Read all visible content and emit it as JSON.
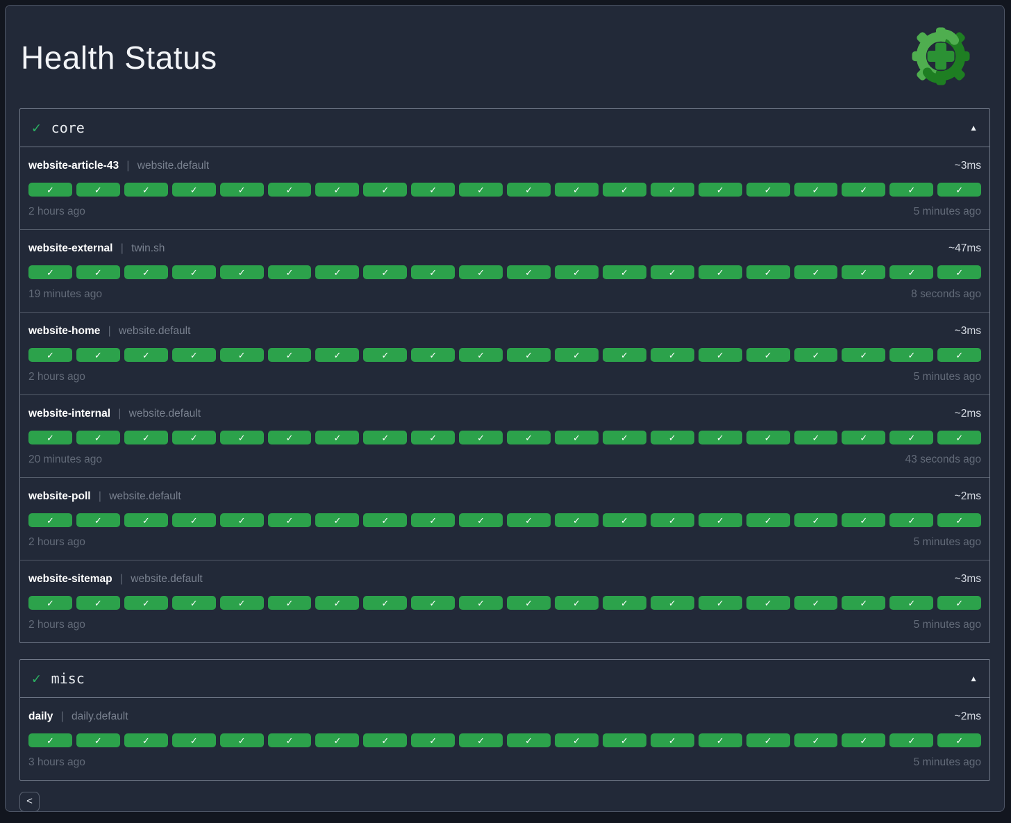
{
  "page": {
    "title": "Health Status"
  },
  "icons": {
    "check": "✓",
    "collapse": "▲",
    "back": "<",
    "logo": "health-gear-plus-logo"
  },
  "strings": {
    "divider": "|"
  },
  "colors": {
    "ok_pill": "#2ca24b",
    "section_check_green": "#2bb062",
    "logo_light_green": "#4fae4f",
    "logo_dark_green": "#1e7e22",
    "logo_plus_green": "#2b9134"
  },
  "sections": [
    {
      "label": "core",
      "status": "ok",
      "rows": [
        {
          "name": "website-article-43",
          "group": "website.default",
          "latency": "~3ms",
          "oldest": "2 hours ago",
          "newest": "5 minutes ago",
          "history": {
            "count": 20,
            "status": "ok"
          }
        },
        {
          "name": "website-external",
          "group": "twin.sh",
          "latency": "~47ms",
          "oldest": "19 minutes ago",
          "newest": "8 seconds ago",
          "history": {
            "count": 20,
            "status": "ok"
          }
        },
        {
          "name": "website-home",
          "group": "website.default",
          "latency": "~3ms",
          "oldest": "2 hours ago",
          "newest": "5 minutes ago",
          "history": {
            "count": 20,
            "status": "ok"
          }
        },
        {
          "name": "website-internal",
          "group": "website.default",
          "latency": "~2ms",
          "oldest": "20 minutes ago",
          "newest": "43 seconds ago",
          "history": {
            "count": 20,
            "status": "ok"
          }
        },
        {
          "name": "website-poll",
          "group": "website.default",
          "latency": "~2ms",
          "oldest": "2 hours ago",
          "newest": "5 minutes ago",
          "history": {
            "count": 20,
            "status": "ok"
          }
        },
        {
          "name": "website-sitemap",
          "group": "website.default",
          "latency": "~3ms",
          "oldest": "2 hours ago",
          "newest": "5 minutes ago",
          "history": {
            "count": 20,
            "status": "ok"
          }
        }
      ]
    },
    {
      "label": "misc",
      "status": "ok",
      "rows": [
        {
          "name": "daily",
          "group": "daily.default",
          "latency": "~2ms",
          "oldest": "3 hours ago",
          "newest": "5 minutes ago",
          "history": {
            "count": 20,
            "status": "ok"
          }
        }
      ]
    }
  ]
}
